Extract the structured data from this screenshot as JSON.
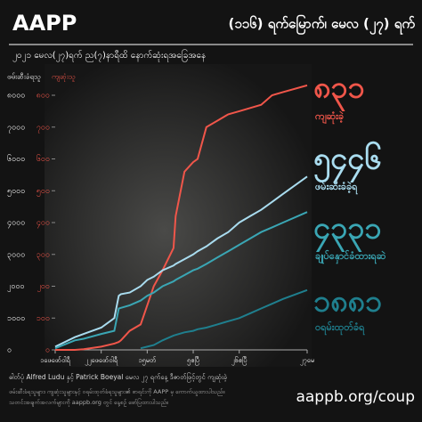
{
  "brand": "AAPP",
  "header": "(၁၁၆) ရက်မြောက်၊ မေလ (၂၇) ရက်",
  "subtitle": "၂၀၂၁ မေလ(၂၇)ရက် ည(၇)နာရီထိ နောက်ဆုံးရအခြေအနေ",
  "photo_credit": "ဓါတ်ပုံ Alfred Ludu နှင့် Patrick Boeyal မေလ ၂၇ ရက်နေ့ ဒီဇာတ်ဖြင့်တွင် ကျဆုံးခဲ့",
  "footer_notes": [
    "ဖမ်းဆီးခံရသူများ၊ ကျဆုံးသူများနှင့် ဝရမ်းထုတ်ခံရသူများ၏ စာရင်းကို AAPP မှ ကောက်ယူထားပါသည်။",
    "သတင်းအချက်အလက်များကို aappb.org တွင် နေ့စဉ် ဖော်ပြထားပါသည်။"
  ],
  "url": "aappb.org/coup",
  "chart_data": {
    "type": "line",
    "y_label": "ဖမ်းဆီးခံရသူ",
    "y2_label": "ကျဆုံးသူ",
    "x": [
      1,
      10,
      14,
      22,
      28,
      30,
      31,
      35,
      40,
      43,
      46,
      50,
      55,
      56,
      60,
      64,
      66,
      70,
      75,
      80,
      85,
      90,
      95,
      100,
      105,
      116
    ],
    "xlim": [
      1,
      116
    ],
    "xticks": [
      {
        "value": 1,
        "label": "၁ဖေဖော်ဝါရီ"
      },
      {
        "value": 22,
        "label": "၂၂ဖေဖော်ဝါရီ"
      },
      {
        "value": 43,
        "label": "၁၅မတ်"
      },
      {
        "value": 64,
        "label": "၅ဧပြီ"
      },
      {
        "value": 85,
        "label": "၂၆ဧပြီ"
      },
      {
        "value": 116,
        "label": "၂၇မေ"
      }
    ],
    "ylim": [
      0,
      8000
    ],
    "yticks": [
      {
        "value": 0,
        "label": "၀"
      },
      {
        "value": 1000,
        "label": "၁၀၀၀"
      },
      {
        "value": 2000,
        "label": "၂၀၀၀"
      },
      {
        "value": 3000,
        "label": "၃၀၀၀"
      },
      {
        "value": 4000,
        "label": "၄၀၀၀"
      },
      {
        "value": 5000,
        "label": "၅၀၀၀"
      },
      {
        "value": 6000,
        "label": "၆၀၀၀"
      },
      {
        "value": 7000,
        "label": "၇၀၀၀"
      },
      {
        "value": 8000,
        "label": "၈၀၀၀"
      }
    ],
    "y2lim": [
      0,
      800
    ],
    "y2ticks": [
      {
        "value": 0,
        "label": "၀"
      },
      {
        "value": 100,
        "label": "၁၀၀"
      },
      {
        "value": 200,
        "label": "၂၀၀"
      },
      {
        "value": 300,
        "label": "၃၀၀"
      },
      {
        "value": 400,
        "label": "၄၀၀"
      },
      {
        "value": 500,
        "label": "၅၀၀"
      },
      {
        "value": 600,
        "label": "၆၀၀"
      },
      {
        "value": 700,
        "label": "၇၀၀"
      },
      {
        "value": 800,
        "label": "၈၀၀"
      }
    ],
    "series": [
      {
        "name": "ကျဆုံးခဲ့",
        "color": "#f0564a",
        "axis": "y2",
        "values": [
          0,
          0,
          2,
          10,
          20,
          25,
          30,
          60,
          80,
          140,
          200,
          250,
          320,
          420,
          560,
          590,
          600,
          700,
          720,
          740,
          750,
          760,
          770,
          800,
          810,
          831
        ],
        "value_labels": [
          null,
          null,
          null,
          null,
          null,
          null,
          null,
          null,
          null,
          null,
          null,
          null,
          null,
          null,
          null,
          null,
          null,
          null,
          null,
          null,
          null,
          null,
          null,
          null,
          null,
          "၈၃၁"
        ]
      },
      {
        "name": "ဖမ်းဆီးခံခဲ့ရ",
        "color": "#a9dcef",
        "values": [
          100,
          400,
          500,
          700,
          1000,
          1700,
          1750,
          1800,
          2000,
          2200,
          2300,
          2500,
          2650,
          2700,
          2850,
          3000,
          3100,
          3250,
          3500,
          3700,
          4000,
          4200,
          4400,
          4650,
          4900,
          5446
        ],
        "value_labels": [
          null,
          null,
          null,
          null,
          null,
          null,
          null,
          null,
          null,
          null,
          null,
          null,
          null,
          null,
          null,
          null,
          null,
          null,
          null,
          null,
          null,
          null,
          null,
          null,
          null,
          "၅၄၄၆"
        ]
      },
      {
        "name": "ချုပ်နှောင်ခံထားရဆဲ",
        "color": "#3aa6b4",
        "values": [
          50,
          300,
          350,
          500,
          600,
          1300,
          1320,
          1400,
          1550,
          1700,
          1800,
          2000,
          2150,
          2200,
          2350,
          2500,
          2550,
          2700,
          2900,
          3100,
          3300,
          3500,
          3700,
          3850,
          4000,
          4331
        ],
        "value_labels": [
          null,
          null,
          null,
          null,
          null,
          null,
          null,
          null,
          null,
          null,
          null,
          null,
          null,
          null,
          null,
          null,
          null,
          null,
          null,
          null,
          null,
          null,
          null,
          null,
          null,
          "၄၃၃၁"
        ]
      },
      {
        "name": "ဝရမ်းထုတ်ခံရ",
        "color": "#1f7f8e",
        "values": [
          null,
          null,
          null,
          null,
          null,
          null,
          null,
          null,
          50,
          100,
          150,
          300,
          450,
          470,
          550,
          600,
          650,
          700,
          800,
          900,
          1000,
          1150,
          1300,
          1450,
          1600,
          1881
        ],
        "value_labels": [
          null,
          null,
          null,
          null,
          null,
          null,
          null,
          null,
          null,
          null,
          null,
          null,
          null,
          null,
          null,
          null,
          null,
          null,
          null,
          null,
          null,
          null,
          null,
          null,
          null,
          "၁၈၈၁"
        ]
      }
    ]
  }
}
